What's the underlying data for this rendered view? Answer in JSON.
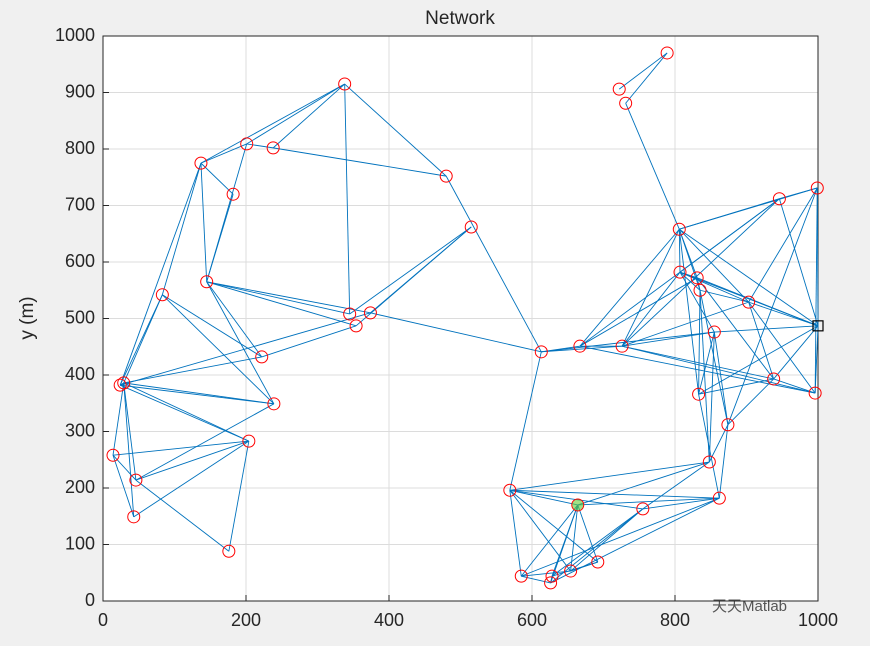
{
  "chart_data": {
    "type": "network",
    "title": "Network",
    "ylabel": "y (m)",
    "watermark": "天天Matlab",
    "xlim": [
      0,
      1000
    ],
    "ylim": [
      0,
      1000
    ],
    "xticks": [
      0,
      200,
      400,
      600,
      800,
      1000
    ],
    "yticks": [
      0,
      100,
      200,
      300,
      400,
      500,
      600,
      700,
      800,
      900,
      1000
    ],
    "grid": true,
    "node_color": "#ff0000",
    "edge_color": "#0072bd",
    "sink_index": 22,
    "sink_color": "#000000",
    "source_index": 41,
    "source_color": "#66cc33",
    "x": [
      338,
      789,
      722,
      731,
      201,
      238,
      137,
      182,
      480,
      515,
      806,
      946,
      999,
      145,
      83,
      345,
      374,
      354,
      807,
      831,
      835,
      903,
      1000,
      613,
      667,
      726,
      855,
      222,
      29,
      24,
      833,
      938,
      996,
      239,
      874,
      204,
      14,
      46,
      848,
      569,
      862,
      664,
      755,
      43,
      176,
      585,
      626,
      654,
      692,
      628
    ],
    "y": [
      915,
      970,
      906,
      881,
      809,
      802,
      775,
      720,
      752,
      662,
      658,
      712,
      731,
      565,
      542,
      508,
      510,
      487,
      582,
      572,
      550,
      529,
      487,
      441,
      451,
      451,
      476,
      432,
      386,
      382,
      366,
      393,
      368,
      349,
      312,
      283,
      258,
      214,
      246,
      196,
      182,
      170,
      163,
      149,
      88,
      44,
      32,
      53,
      69,
      44
    ],
    "edges": [
      [
        0,
        4
      ],
      [
        0,
        6
      ],
      [
        0,
        5
      ],
      [
        0,
        8
      ],
      [
        0,
        15
      ],
      [
        1,
        2
      ],
      [
        1,
        3
      ],
      [
        3,
        10
      ],
      [
        4,
        6
      ],
      [
        4,
        5
      ],
      [
        4,
        13
      ],
      [
        5,
        8
      ],
      [
        6,
        7
      ],
      [
        6,
        13
      ],
      [
        6,
        14
      ],
      [
        6,
        29
      ],
      [
        7,
        13
      ],
      [
        8,
        23
      ],
      [
        9,
        15
      ],
      [
        9,
        17
      ],
      [
        9,
        16
      ],
      [
        16,
        23
      ],
      [
        13,
        15
      ],
      [
        13,
        17
      ],
      [
        13,
        16
      ],
      [
        13,
        33
      ],
      [
        13,
        27
      ],
      [
        14,
        28
      ],
      [
        14,
        27
      ],
      [
        14,
        33
      ],
      [
        14,
        29
      ],
      [
        28,
        27
      ],
      [
        28,
        33
      ],
      [
        28,
        35
      ],
      [
        28,
        36
      ],
      [
        28,
        37
      ],
      [
        28,
        43
      ],
      [
        29,
        35
      ],
      [
        29,
        33
      ],
      [
        29,
        16
      ],
      [
        36,
        35
      ],
      [
        36,
        37
      ],
      [
        36,
        43
      ],
      [
        37,
        44
      ],
      [
        37,
        35
      ],
      [
        43,
        35
      ],
      [
        35,
        44
      ],
      [
        27,
        17
      ],
      [
        33,
        37
      ],
      [
        28,
        29
      ],
      [
        10,
        11
      ],
      [
        10,
        12
      ],
      [
        10,
        18
      ],
      [
        10,
        19
      ],
      [
        10,
        20
      ],
      [
        10,
        21
      ],
      [
        10,
        24
      ],
      [
        10,
        25
      ],
      [
        10,
        22
      ],
      [
        10,
        30
      ],
      [
        11,
        12
      ],
      [
        11,
        18
      ],
      [
        11,
        25
      ],
      [
        11,
        22
      ],
      [
        11,
        24
      ],
      [
        12,
        22
      ],
      [
        12,
        32
      ],
      [
        12,
        21
      ],
      [
        18,
        19
      ],
      [
        18,
        20
      ],
      [
        18,
        21
      ],
      [
        18,
        22
      ],
      [
        18,
        25
      ],
      [
        18,
        26
      ],
      [
        19,
        20
      ],
      [
        19,
        24
      ],
      [
        19,
        22
      ],
      [
        19,
        31
      ],
      [
        20,
        21
      ],
      [
        20,
        30
      ],
      [
        20,
        34
      ],
      [
        21,
        22
      ],
      [
        21,
        25
      ],
      [
        21,
        32
      ],
      [
        21,
        31
      ],
      [
        23,
        24
      ],
      [
        23,
        25
      ],
      [
        23,
        39
      ],
      [
        23,
        26
      ],
      [
        24,
        25
      ],
      [
        24,
        32
      ],
      [
        25,
        26
      ],
      [
        25,
        31
      ],
      [
        25,
        32
      ],
      [
        26,
        22
      ],
      [
        26,
        30
      ],
      [
        26,
        38
      ],
      [
        26,
        34
      ],
      [
        30,
        31
      ],
      [
        30,
        22
      ],
      [
        30,
        40
      ],
      [
        31,
        22
      ],
      [
        31,
        32
      ],
      [
        32,
        22
      ],
      [
        34,
        38
      ],
      [
        34,
        31
      ],
      [
        34,
        12
      ],
      [
        38,
        42
      ],
      [
        38,
        41
      ],
      [
        38,
        20
      ],
      [
        40,
        39
      ],
      [
        40,
        41
      ],
      [
        40,
        42
      ],
      [
        40,
        45
      ],
      [
        40,
        46
      ],
      [
        40,
        34
      ],
      [
        39,
        45
      ],
      [
        39,
        47
      ],
      [
        39,
        48
      ],
      [
        39,
        41
      ],
      [
        39,
        42
      ],
      [
        41,
        45
      ],
      [
        41,
        46
      ],
      [
        41,
        47
      ],
      [
        41,
        48
      ],
      [
        41,
        49
      ],
      [
        42,
        46
      ],
      [
        42,
        49
      ],
      [
        45,
        46
      ],
      [
        45,
        47
      ],
      [
        47,
        48
      ],
      [
        48,
        49
      ],
      [
        46,
        49
      ],
      [
        42,
        47
      ],
      [
        38,
        39
      ]
    ]
  }
}
